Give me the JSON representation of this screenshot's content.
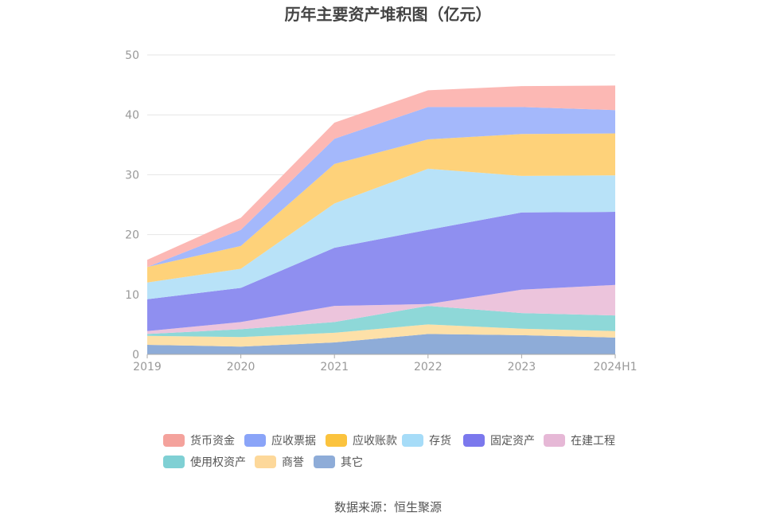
{
  "chart_data": {
    "type": "area",
    "stacked": true,
    "title": "历年主要资产堆积图（亿元）",
    "x": [
      "2019",
      "2020",
      "2021",
      "2022",
      "2023",
      "2024H1"
    ],
    "ylim": [
      0,
      50
    ],
    "yticks": [
      0,
      10,
      20,
      30,
      40,
      50
    ],
    "grid": true,
    "legend_position": "bottom",
    "series": [
      {
        "name": "其它",
        "color": "#8eacd8",
        "values": [
          1.6,
          1.3,
          2.0,
          3.4,
          3.2,
          2.8
        ]
      },
      {
        "name": "商誉",
        "color": "#fde0a8",
        "values": [
          1.5,
          1.6,
          1.6,
          1.6,
          1.1,
          1.1
        ]
      },
      {
        "name": "使用权资产",
        "color": "#8ed8d8",
        "values": [
          0.3,
          1.3,
          1.8,
          3.1,
          2.6,
          2.6
        ]
      },
      {
        "name": "在建工程",
        "color": "#ecc4dc",
        "values": [
          0.5,
          1.2,
          2.7,
          0.3,
          3.9,
          5.1
        ]
      },
      {
        "name": "固定资产",
        "color": "#8f8ff0",
        "values": [
          5.3,
          5.7,
          9.7,
          12.4,
          12.9,
          12.2
        ]
      },
      {
        "name": "存货",
        "color": "#b8e2f8",
        "values": [
          2.8,
          3.2,
          7.4,
          10.2,
          6.1,
          6.1
        ]
      },
      {
        "name": "应收账款",
        "color": "#fed27a",
        "values": [
          2.6,
          3.8,
          6.6,
          4.9,
          7.0,
          7.0
        ]
      },
      {
        "name": "应收票据",
        "color": "#a4b8fb",
        "values": [
          0.0,
          2.7,
          4.2,
          5.4,
          4.5,
          3.9
        ]
      },
      {
        "name": "货币资金",
        "color": "#fcb8b4",
        "values": [
          1.2,
          2.0,
          2.7,
          2.8,
          3.5,
          4.1
        ]
      }
    ]
  },
  "legend": [
    {
      "name": "货币资金",
      "color": "#f4a29c"
    },
    {
      "name": "应收票据",
      "color": "#8aa4f8"
    },
    {
      "name": "应收账款",
      "color": "#fbc33e"
    },
    {
      "name": "存货",
      "color": "#a6dcf8"
    },
    {
      "name": "固定资产",
      "color": "#7b78ed"
    },
    {
      "name": "在建工程",
      "color": "#e6b8d6"
    },
    {
      "name": "使用权资产",
      "color": "#7fd0d4"
    },
    {
      "name": "商誉",
      "color": "#fdd89a"
    },
    {
      "name": "其它",
      "color": "#8eacd8"
    }
  ],
  "source": "数据来源：恒生聚源"
}
